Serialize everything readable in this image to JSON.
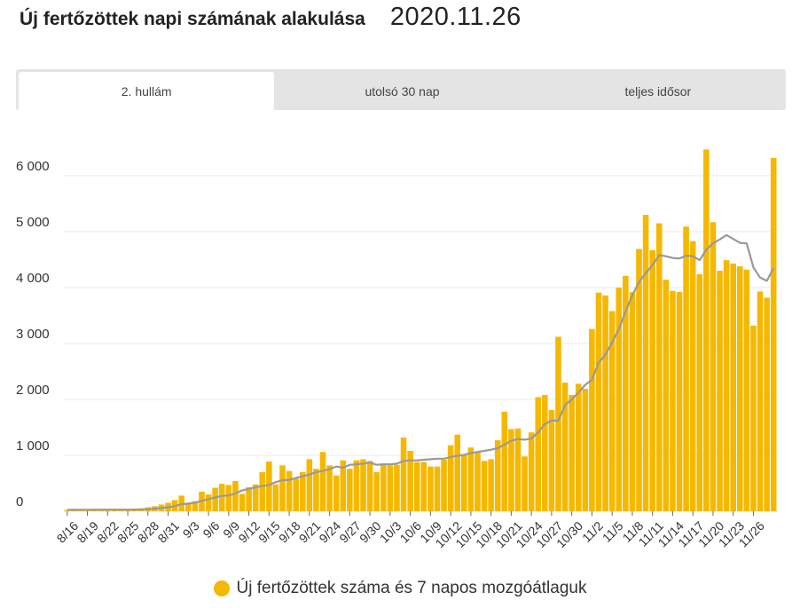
{
  "header": {
    "title": "Új fertőzöttek napi számának alakulása",
    "date": "2020.11.26"
  },
  "tabs": [
    {
      "label": "2. hullám",
      "active": true
    },
    {
      "label": "utolsó 30 nap",
      "active": false
    },
    {
      "label": "teljes idősor",
      "active": false
    }
  ],
  "legend": {
    "label": "Új fertőzöttek száma és 7 napos mozgóátlaguk"
  },
  "colors": {
    "bar": "#f5b800",
    "line": "#999999",
    "grid": "#e8e8e8"
  },
  "chart_data": {
    "type": "bar",
    "title": "Új fertőzöttek napi számának alakulása",
    "xlabel": "",
    "ylabel": "",
    "ylim": [
      0,
      6500
    ],
    "yticks": [
      0,
      1000,
      2000,
      3000,
      4000,
      5000,
      6000
    ],
    "ytick_labels": [
      "0",
      "1 000",
      "2 000",
      "3 000",
      "4 000",
      "5 000",
      "6 000"
    ],
    "xtick_labels": [
      "8/16",
      "8/19",
      "8/22",
      "8/25",
      "8/28",
      "8/31",
      "9/3",
      "9/6",
      "9/9",
      "9/12",
      "9/15",
      "9/18",
      "9/21",
      "9/24",
      "9/27",
      "9/30",
      "10/3",
      "10/6",
      "10/9",
      "10/12",
      "10/15",
      "10/18",
      "10/21",
      "10/24",
      "10/27",
      "10/30",
      "11/2",
      "11/5",
      "11/8",
      "11/11",
      "11/14",
      "11/17",
      "11/20",
      "11/23",
      "11/26"
    ],
    "grid": true,
    "series": [
      {
        "name": "Új fertőzöttek száma",
        "kind": "bar",
        "values": [
          22,
          25,
          30,
          28,
          35,
          20,
          25,
          30,
          45,
          28,
          35,
          50,
          70,
          90,
          120,
          150,
          200,
          280,
          130,
          180,
          350,
          300,
          420,
          490,
          470,
          540,
          310,
          430,
          480,
          700,
          890,
          480,
          820,
          720,
          580,
          700,
          930,
          760,
          1060,
          820,
          640,
          910,
          760,
          910,
          930,
          900,
          700,
          850,
          820,
          830,
          1320,
          1080,
          880,
          880,
          800,
          800,
          920,
          1180,
          1370,
          1020,
          1140,
          1050,
          900,
          930,
          1270,
          1780,
          1470,
          1480,
          980,
          1410,
          2040,
          2080,
          1810,
          3120,
          2300,
          2080,
          2280,
          2190,
          3260,
          3910,
          3860,
          3580,
          4000,
          4210,
          3920,
          4690,
          5300,
          4670,
          5150,
          4140,
          3940,
          3920,
          5090,
          4830,
          4240,
          6470,
          5170,
          4300,
          4490,
          4430,
          4380,
          4320,
          3320,
          3930,
          3820,
          6320
        ]
      },
      {
        "name": "7 napos mozgóátlag",
        "kind": "line",
        "values": [
          26,
          26,
          27,
          27,
          28,
          28,
          28,
          28,
          29,
          29,
          30,
          33,
          38,
          46,
          57,
          72,
          92,
          127,
          137,
          153,
          187,
          215,
          248,
          275,
          282,
          317,
          373,
          400,
          428,
          450,
          470,
          520,
          555,
          560,
          595,
          625,
          655,
          700,
          720,
          755,
          800,
          780,
          830,
          840,
          850,
          870,
          830,
          840,
          840,
          850,
          900,
          910,
          910,
          920,
          930,
          940,
          940,
          970,
          990,
          1010,
          1040,
          1060,
          1080,
          1100,
          1130,
          1190,
          1260,
          1290,
          1280,
          1300,
          1410,
          1560,
          1620,
          1620,
          1900,
          2000,
          2120,
          2260,
          2350,
          2660,
          2800,
          3020,
          3260,
          3570,
          3860,
          4100,
          4260,
          4400,
          4580,
          4560,
          4530,
          4520,
          4570,
          4560,
          4490,
          4680,
          4790,
          4860,
          4940,
          4870,
          4800,
          4790,
          4360,
          4180,
          4120,
          4350
        ]
      }
    ]
  }
}
